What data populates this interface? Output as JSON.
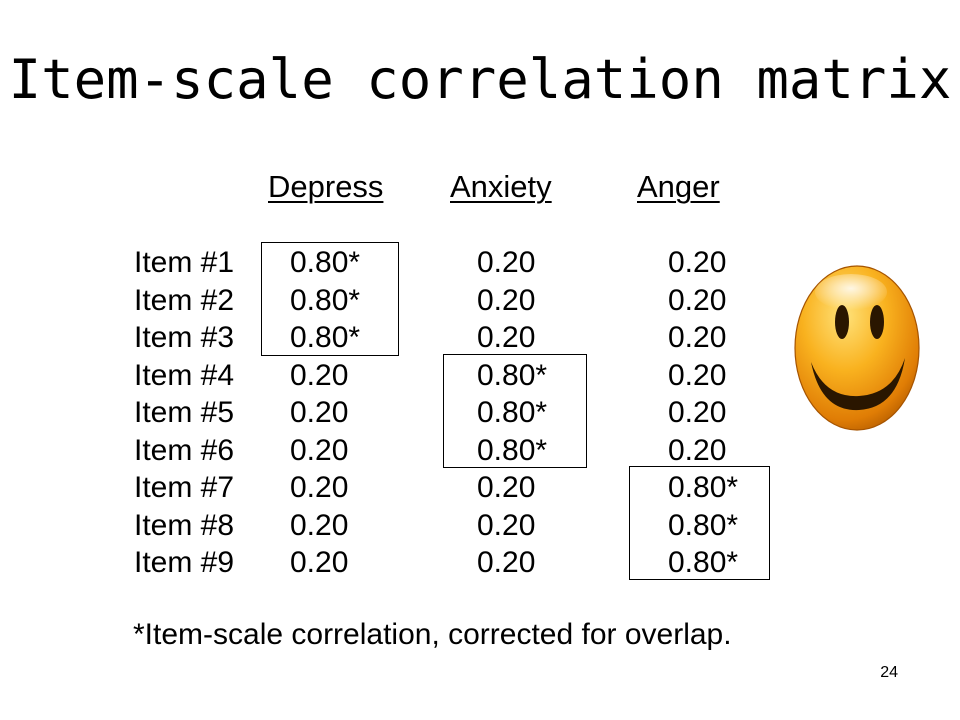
{
  "slide": {
    "title": "Item-scale correlation matrix",
    "columns": [
      "Depress",
      "Anxiety",
      "Anger"
    ],
    "rows": [
      {
        "label": "Item #1",
        "values": [
          "0.80*",
          "0.20",
          "0.20"
        ]
      },
      {
        "label": "Item #2",
        "values": [
          "0.80*",
          "0.20",
          "0.20"
        ]
      },
      {
        "label": "Item #3",
        "values": [
          "0.80*",
          "0.20",
          "0.20"
        ]
      },
      {
        "label": "Item #4",
        "values": [
          "0.20",
          "0.80*",
          "0.20"
        ]
      },
      {
        "label": "Item #5",
        "values": [
          "0.20",
          "0.80*",
          "0.20"
        ]
      },
      {
        "label": "Item #6",
        "values": [
          "0.20",
          "0.80*",
          "0.20"
        ]
      },
      {
        "label": "Item #7",
        "values": [
          "0.20",
          "0.20",
          "0.80*"
        ]
      },
      {
        "label": "Item #8",
        "values": [
          "0.20",
          "0.20",
          "0.80*"
        ]
      },
      {
        "label": "Item #9",
        "values": [
          "0.20",
          "0.20",
          "0.80*"
        ]
      }
    ],
    "footnote": "*Item-scale correlation, corrected for overlap.",
    "page_number": "24",
    "icon": "smiley-face-icon",
    "colors": {
      "smiley_light": "#ffd75a",
      "smiley_mid": "#f5a416",
      "smiley_dark": "#c46a00"
    }
  }
}
